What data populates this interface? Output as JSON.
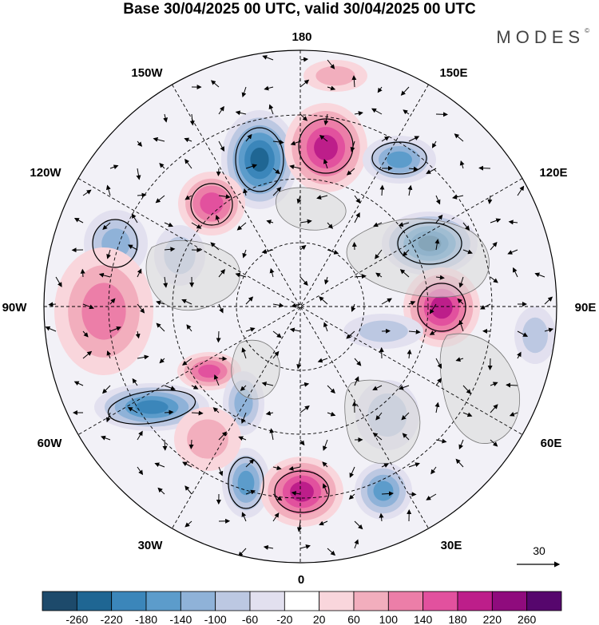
{
  "header": {
    "title": "Base 30/04/2025 00 UTC, valid 30/04/2025 00 UTC",
    "brand": "MODES",
    "brand_mark": "©"
  },
  "map": {
    "projection": "north-polar-stereographic",
    "longitude_labels": {
      "top": "180",
      "top_left": "150W",
      "top_right": "150E",
      "upper_left": "120W",
      "upper_right": "120E",
      "left": "90W",
      "right": "90E",
      "lower_left": "60W",
      "lower_right": "60E",
      "bottom_left": "30W",
      "bottom_right": "30E",
      "bottom": "0"
    },
    "vector_reference": {
      "label": "30"
    }
  },
  "colorbar": {
    "ticks": [
      "-260",
      "-220",
      "-180",
      "-140",
      "-100",
      "-60",
      "-20",
      "20",
      "60",
      "100",
      "140",
      "180",
      "220",
      "260"
    ],
    "colors": [
      "#1d4a6b",
      "#1f6693",
      "#3b86ba",
      "#5c9ccb",
      "#8fb2d8",
      "#bcc8e2",
      "#e2e0ef",
      "#ffffff",
      "#f9d6dc",
      "#f2aebd",
      "#ec7ea8",
      "#e2519e",
      "#bd1e8a",
      "#8f0b7d",
      "#56066d"
    ]
  },
  "anomalies": [
    {
      "sign": "neg",
      "level": 6
    },
    {
      "sign": "pos",
      "level": 5
    },
    {
      "sign": "neg",
      "level": 4
    },
    {
      "sign": "pos",
      "level": 4
    },
    {
      "sign": "neg",
      "level": 3
    },
    {
      "sign": "neg",
      "level": 2
    },
    {
      "sign": "neg",
      "level": 6
    },
    {
      "sign": "pos",
      "level": 5
    },
    {
      "sign": "neg",
      "level": 2
    },
    {
      "sign": "pos",
      "level": 3
    },
    {
      "sign": "pos",
      "level": 4
    },
    {
      "sign": "neg",
      "level": 5
    },
    {
      "sign": "neg",
      "level": 3
    },
    {
      "sign": "neg",
      "level": 4
    },
    {
      "sign": "pos",
      "level": 5
    },
    {
      "sign": "neg",
      "level": 4
    },
    {
      "sign": "neg",
      "level": 2
    },
    {
      "sign": "pos",
      "level": 2
    },
    {
      "sign": "neg",
      "level": 2
    },
    {
      "sign": "pos",
      "level": 2
    }
  ]
}
